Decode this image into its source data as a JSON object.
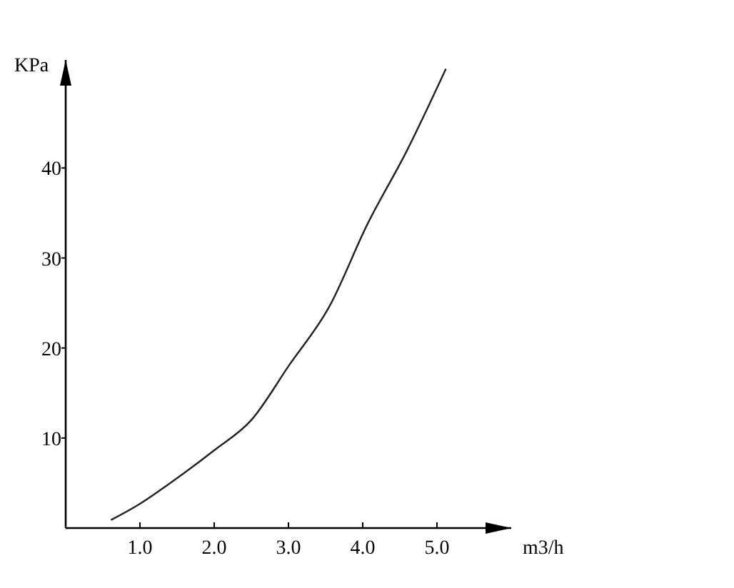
{
  "chart_data": {
    "type": "line",
    "xlabel": "m3/h",
    "ylabel": "KPa",
    "xlim": [
      0,
      6
    ],
    "ylim": [
      0,
      52
    ],
    "xticks": [
      {
        "value": 1,
        "label": "1.0"
      },
      {
        "value": 2,
        "label": "2.0"
      },
      {
        "value": 3,
        "label": "3.0"
      },
      {
        "value": 4,
        "label": "4.0"
      },
      {
        "value": 5,
        "label": "5.0"
      }
    ],
    "yticks": [
      10,
      20,
      30,
      40
    ],
    "grid": false,
    "marker": "none",
    "line_style": "solid",
    "series": [
      {
        "color": "#222222",
        "x": [
          0.61,
          1.0,
          1.39,
          2.01,
          2.5,
          3.01,
          3.55,
          4.06,
          4.6,
          5.12
        ],
        "values": [
          0.9,
          2.7,
          4.9,
          8.7,
          12,
          18.1,
          24.6,
          33.7,
          42,
          51
        ]
      }
    ]
  }
}
